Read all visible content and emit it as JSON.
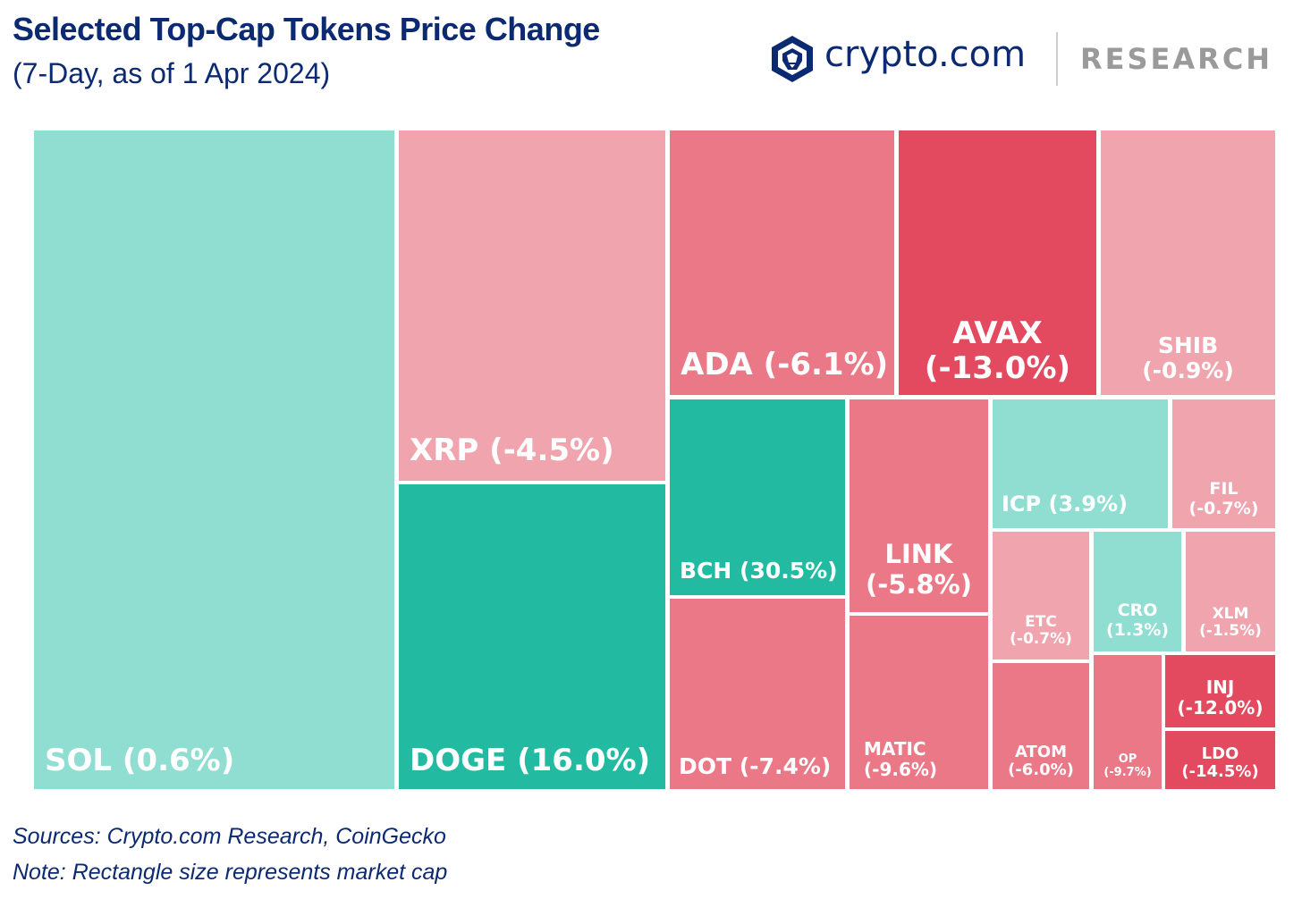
{
  "header": {
    "title": "Selected Top-Cap Tokens Price Change",
    "subtitle": "(7-Day, as of 1 Apr 2024)"
  },
  "brand": {
    "name": "crypto.com",
    "research": "RESEARCH",
    "logo_icon": "crypto-com-lion-shield-icon"
  },
  "colors": {
    "positive_light": "#8fded1",
    "positive_dark": "#22bba2",
    "negative_light": "#f0a5ae",
    "negative_mid": "#ea7886",
    "negative_dark": "#e34a5f",
    "title": "#0c2a72"
  },
  "chart_data": {
    "type": "treemap",
    "title": "Selected Top-Cap Tokens Price Change",
    "subtitle": "(7-Day, as of 1 Apr 2024)",
    "size_measure": "market cap",
    "color_measure": "7-day price change (%)",
    "items": [
      {
        "token": "SOL",
        "change_pct": 0.6,
        "label": "SOL (0.6%)"
      },
      {
        "token": "XRP",
        "change_pct": -4.5,
        "label": "XRP (-4.5%)"
      },
      {
        "token": "DOGE",
        "change_pct": 16.0,
        "label": "DOGE (16.0%)"
      },
      {
        "token": "ADA",
        "change_pct": -6.1,
        "label": "ADA (-6.1%)"
      },
      {
        "token": "AVAX",
        "change_pct": -13.0,
        "label": "AVAX (-13.0%)"
      },
      {
        "token": "SHIB",
        "change_pct": -0.9,
        "label": "SHIB (-0.9%)"
      },
      {
        "token": "BCH",
        "change_pct": 30.5,
        "label": "BCH (30.5%)"
      },
      {
        "token": "LINK",
        "change_pct": -5.8,
        "label": "LINK (-5.8%)"
      },
      {
        "token": "ICP",
        "change_pct": 3.9,
        "label": "ICP (3.9%)"
      },
      {
        "token": "FIL",
        "change_pct": -0.7,
        "label": "FIL (-0.7%)"
      },
      {
        "token": "DOT",
        "change_pct": -7.4,
        "label": "DOT (-7.4%)"
      },
      {
        "token": "MATIC",
        "change_pct": -9.6,
        "label": "MATIC (-9.6%)"
      },
      {
        "token": "ETC",
        "change_pct": -0.7,
        "label": "ETC (-0.7%)"
      },
      {
        "token": "CRO",
        "change_pct": 1.3,
        "label": "CRO (1.3%)"
      },
      {
        "token": "XLM",
        "change_pct": -1.5,
        "label": "XLM (-1.5%)"
      },
      {
        "token": "ATOM",
        "change_pct": -6.0,
        "label": "ATOM (-6.0%)"
      },
      {
        "token": "OP",
        "change_pct": -9.7,
        "label": "OP (-9.7%)"
      },
      {
        "token": "INJ",
        "change_pct": -12.0,
        "label": "INJ (-12.0%)"
      },
      {
        "token": "LDO",
        "change_pct": -14.5,
        "label": "LDO (-14.5%)"
      }
    ]
  },
  "footer": {
    "sources": "Sources: Crypto.com Research, CoinGecko",
    "note": "Note: Rectangle size represents market cap"
  }
}
